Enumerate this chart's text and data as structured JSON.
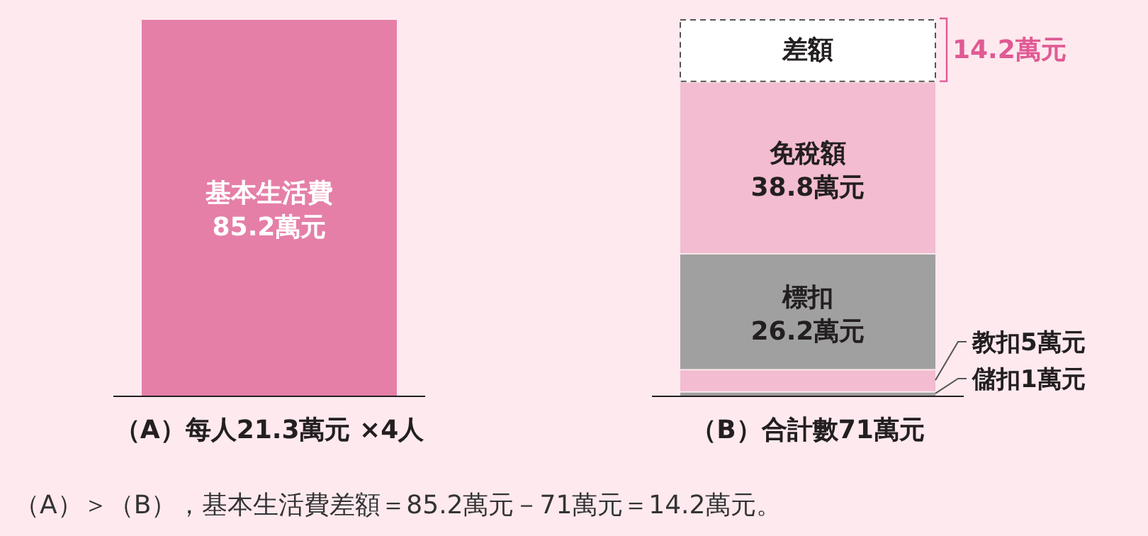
{
  "chart_data": {
    "type": "bar",
    "stacked": true,
    "categories": [
      "（A）每人21.3萬元 ×4人",
      "（B）合計數71萬元"
    ],
    "series": [
      {
        "name": "基本生活費",
        "color": "#e57fa8",
        "values": [
          85.2,
          null
        ],
        "value_labels": [
          "85.2萬元",
          null
        ]
      },
      {
        "name": "儲扣",
        "color": "#a0a0a0",
        "values": [
          null,
          1
        ],
        "value_labels": [
          null,
          "1萬元"
        ]
      },
      {
        "name": "教扣",
        "color": "#f3bcd0",
        "values": [
          null,
          5
        ],
        "value_labels": [
          null,
          "5萬元"
        ]
      },
      {
        "name": "標扣",
        "color": "#a0a0a0",
        "values": [
          null,
          26.2
        ],
        "value_labels": [
          null,
          "26.2萬元"
        ]
      },
      {
        "name": "免稅額",
        "color": "#f3bcd0",
        "values": [
          null,
          38.8
        ],
        "value_labels": [
          null,
          "38.8萬元"
        ]
      },
      {
        "name": "差額",
        "color": "#ffffff",
        "line_style": "dashed",
        "values": [
          null,
          14.2
        ],
        "value_labels": [
          null,
          "14.2萬元"
        ]
      }
    ],
    "annotations": [
      "（A）＞（B），基本生活費差額＝85.2萬元－71萬元＝14.2萬元。"
    ]
  }
}
